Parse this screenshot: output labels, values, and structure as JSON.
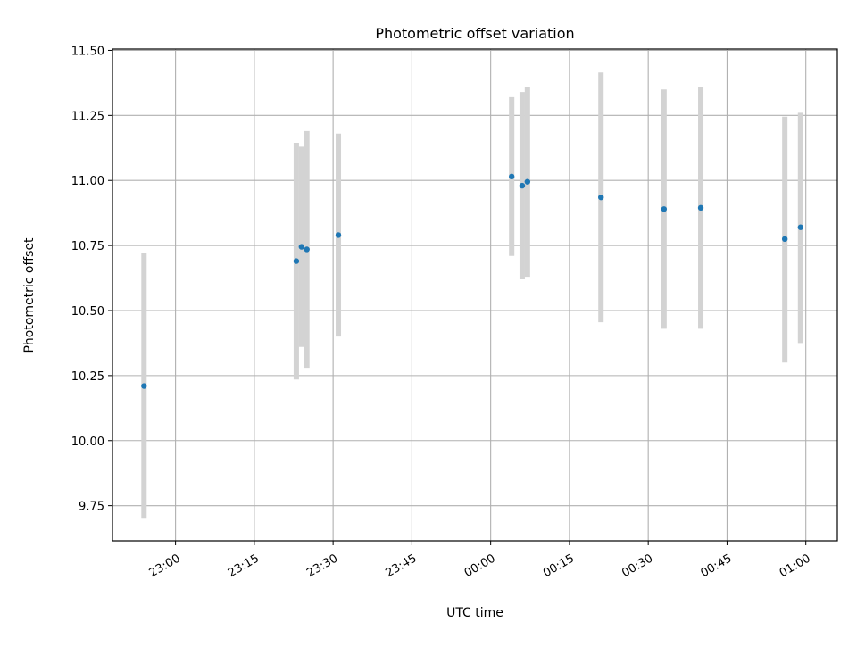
{
  "chart_data": {
    "type": "scatter",
    "title": "Photometric offset variation",
    "xlabel": "UTC time",
    "ylabel": "Photometric offset",
    "x_unit": "UTC time (HH:MM)",
    "xlim": [
      "22:48",
      "01:06"
    ],
    "ylim": [
      9.615,
      11.505
    ],
    "x_ticks": [
      "23:00",
      "23:15",
      "23:30",
      "23:45",
      "00:00",
      "00:15",
      "00:30",
      "00:45",
      "01:00"
    ],
    "y_ticks": [
      "9.75",
      "10.00",
      "10.25",
      "10.50",
      "10.75",
      "11.00",
      "11.25",
      "11.50"
    ],
    "grid": true,
    "legend": "none",
    "point_color": "#1f77b4",
    "errorbar_color": "#d3d3d3",
    "points": [
      {
        "time": "22:54",
        "value": 10.21,
        "err_low": 9.7,
        "err_high": 10.72
      },
      {
        "time": "23:23",
        "value": 10.69,
        "err_low": 10.235,
        "err_high": 11.145
      },
      {
        "time": "23:24",
        "value": 10.745,
        "err_low": 10.36,
        "err_high": 11.13
      },
      {
        "time": "23:25",
        "value": 10.735,
        "err_low": 10.28,
        "err_high": 11.19
      },
      {
        "time": "23:31",
        "value": 10.79,
        "err_low": 10.4,
        "err_high": 11.18
      },
      {
        "time": "00:04",
        "value": 11.015,
        "err_low": 10.71,
        "err_high": 11.32
      },
      {
        "time": "00:06",
        "value": 10.98,
        "err_low": 10.62,
        "err_high": 11.34
      },
      {
        "time": "00:07",
        "value": 10.995,
        "err_low": 10.63,
        "err_high": 11.36
      },
      {
        "time": "00:21",
        "value": 10.935,
        "err_low": 10.455,
        "err_high": 11.415
      },
      {
        "time": "00:33",
        "value": 10.89,
        "err_low": 10.43,
        "err_high": 11.35
      },
      {
        "time": "00:40",
        "value": 10.895,
        "err_low": 10.43,
        "err_high": 11.36
      },
      {
        "time": "00:56",
        "value": 10.775,
        "err_low": 10.3,
        "err_high": 11.245
      },
      {
        "time": "00:59",
        "value": 10.82,
        "err_low": 10.375,
        "err_high": 11.26
      }
    ]
  }
}
